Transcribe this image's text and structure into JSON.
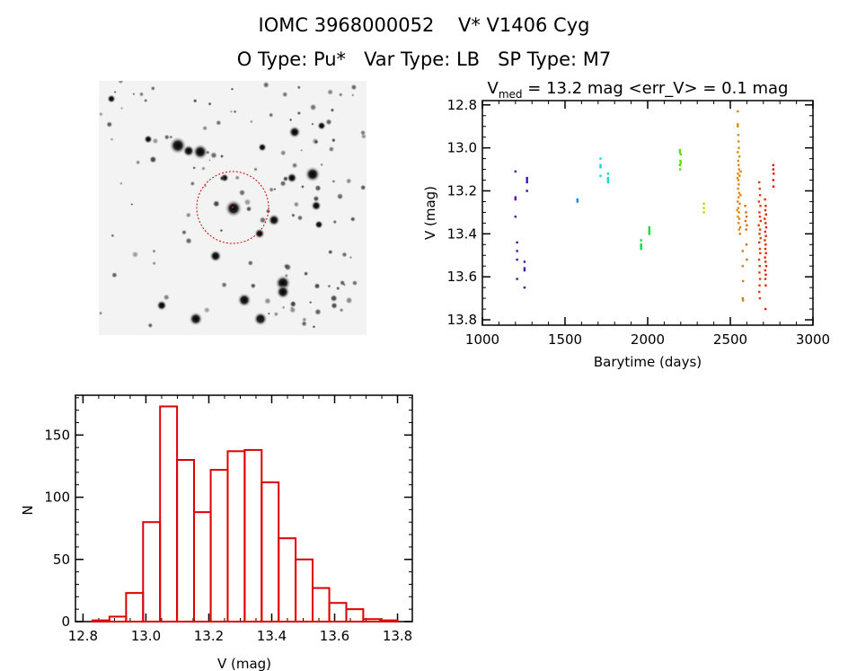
{
  "header": {
    "title_line1": "IOMC 3968000052    V* V1406 Cyg",
    "title_line2": "O Type: Pu*   Var Type: LB   SP Type: M7"
  },
  "chart_data": [
    {
      "type": "image",
      "description_label": "",
      "aperture_circle_color": "#cc0000"
    },
    {
      "type": "scatter",
      "title": "V_med = 13.2 mag <err_V> = 0.1 mag",
      "title_parts": {
        "v": "V",
        "sub": "med",
        "rest": " = 13.2 mag <err_V> = 0.1 mag"
      },
      "xlabel": "Barytime (days)",
      "ylabel": "V (mag)",
      "xlim": [
        1000,
        3000
      ],
      "ylim": [
        13.825,
        12.78
      ],
      "y_inverted": true,
      "xticks": [
        "1000",
        "1500",
        "2000",
        "2500",
        "3000"
      ],
      "yticks": [
        "12.8",
        "13.0",
        "13.2",
        "13.4",
        "13.6",
        "13.8"
      ],
      "color_scale": "rainbow by Barytime",
      "points": [
        [
          1200,
          13.11
        ],
        [
          1200,
          13.23
        ],
        [
          1200,
          13.24
        ],
        [
          1200,
          13.32
        ],
        [
          1210,
          13.44
        ],
        [
          1210,
          13.48
        ],
        [
          1210,
          13.52
        ],
        [
          1210,
          13.61
        ],
        [
          1255,
          13.53
        ],
        [
          1255,
          13.56
        ],
        [
          1255,
          13.57
        ],
        [
          1255,
          13.65
        ],
        [
          1270,
          13.14
        ],
        [
          1270,
          13.15
        ],
        [
          1270,
          13.16
        ],
        [
          1270,
          13.2
        ],
        [
          1575,
          13.24
        ],
        [
          1575,
          13.25
        ],
        [
          1715,
          13.05
        ],
        [
          1715,
          13.08
        ],
        [
          1715,
          13.09
        ],
        [
          1715,
          13.13
        ],
        [
          1760,
          13.12
        ],
        [
          1760,
          13.14
        ],
        [
          1760,
          13.15
        ],
        [
          1760,
          13.16
        ],
        [
          1960,
          13.43
        ],
        [
          1960,
          13.45
        ],
        [
          1960,
          13.46
        ],
        [
          1960,
          13.47
        ],
        [
          2010,
          13.37
        ],
        [
          2010,
          13.38
        ],
        [
          2010,
          13.39
        ],
        [
          2010,
          13.4
        ],
        [
          2195,
          13.01
        ],
        [
          2195,
          13.02
        ],
        [
          2200,
          13.03
        ],
        [
          2198,
          13.06
        ],
        [
          2200,
          13.07
        ],
        [
          2195,
          13.08
        ],
        [
          2197,
          13.1
        ],
        [
          2340,
          13.26
        ],
        [
          2340,
          13.28
        ],
        [
          2340,
          13.3
        ],
        [
          2545,
          12.83
        ],
        [
          2545,
          12.89
        ],
        [
          2545,
          12.9
        ],
        [
          2548,
          12.94
        ],
        [
          2550,
          12.97
        ],
        [
          2552,
          13.0
        ],
        [
          2545,
          13.02
        ],
        [
          2555,
          13.04
        ],
        [
          2548,
          13.06
        ],
        [
          2550,
          13.08
        ],
        [
          2553,
          13.1
        ],
        [
          2546,
          13.12
        ],
        [
          2556,
          13.13
        ],
        [
          2549,
          13.15
        ],
        [
          2551,
          13.17
        ],
        [
          2547,
          13.19
        ],
        [
          2554,
          13.21
        ],
        [
          2550,
          13.23
        ],
        [
          2545,
          13.25
        ],
        [
          2557,
          13.26
        ],
        [
          2548,
          13.28
        ],
        [
          2552,
          13.3
        ],
        [
          2546,
          13.32
        ],
        [
          2555,
          13.33
        ],
        [
          2550,
          13.35
        ],
        [
          2560,
          13.37
        ],
        [
          2553,
          13.38
        ],
        [
          2558,
          13.4
        ],
        [
          2543,
          13.14
        ],
        [
          2562,
          13.22
        ],
        [
          2541,
          13.29
        ],
        [
          2563,
          13.11
        ],
        [
          2575,
          13.48
        ],
        [
          2575,
          13.55
        ],
        [
          2577,
          13.62
        ],
        [
          2575,
          13.7
        ],
        [
          2577,
          13.71
        ],
        [
          2590,
          13.27
        ],
        [
          2595,
          13.3
        ],
        [
          2598,
          13.32
        ],
        [
          2592,
          13.34
        ],
        [
          2600,
          13.36
        ],
        [
          2596,
          13.38
        ],
        [
          2598,
          13.45
        ],
        [
          2600,
          13.52
        ],
        [
          2675,
          13.16
        ],
        [
          2678,
          13.19
        ],
        [
          2680,
          13.22
        ],
        [
          2673,
          13.25
        ],
        [
          2682,
          13.27
        ],
        [
          2676,
          13.3
        ],
        [
          2679,
          13.32
        ],
        [
          2684,
          13.34
        ],
        [
          2672,
          13.36
        ],
        [
          2680,
          13.38
        ],
        [
          2677,
          13.4
        ],
        [
          2683,
          13.42
        ],
        [
          2675,
          13.44
        ],
        [
          2679,
          13.47
        ],
        [
          2681,
          13.49
        ],
        [
          2674,
          13.52
        ],
        [
          2678,
          13.55
        ],
        [
          2676,
          13.58
        ],
        [
          2680,
          13.61
        ],
        [
          2677,
          13.64
        ],
        [
          2675,
          13.67
        ],
        [
          2679,
          13.7
        ],
        [
          2710,
          13.24
        ],
        [
          2714,
          13.27
        ],
        [
          2712,
          13.29
        ],
        [
          2716,
          13.31
        ],
        [
          2708,
          13.33
        ],
        [
          2713,
          13.35
        ],
        [
          2717,
          13.37
        ],
        [
          2711,
          13.39
        ],
        [
          2715,
          13.41
        ],
        [
          2709,
          13.43
        ],
        [
          2714,
          13.45
        ],
        [
          2712,
          13.47
        ],
        [
          2716,
          13.49
        ],
        [
          2710,
          13.51
        ],
        [
          2713,
          13.53
        ],
        [
          2717,
          13.55
        ],
        [
          2711,
          13.57
        ],
        [
          2715,
          13.59
        ],
        [
          2712,
          13.61
        ],
        [
          2714,
          13.64
        ],
        [
          2713,
          13.75
        ],
        [
          2760,
          13.08
        ],
        [
          2760,
          13.1
        ],
        [
          2762,
          13.12
        ],
        [
          2760,
          13.15
        ],
        [
          2761,
          13.18
        ]
      ]
    },
    {
      "type": "bar",
      "subtype": "histogram",
      "xlabel": "V (mag)",
      "ylabel": "N",
      "xlim": [
        12.776,
        13.847
      ],
      "ylim": [
        0,
        182
      ],
      "xticks": [
        "12.8",
        "13.0",
        "13.2",
        "13.4",
        "13.6",
        "13.8"
      ],
      "yticks": [
        "0",
        "50",
        "100",
        "150"
      ],
      "bin_edges": [
        12.83,
        12.884,
        12.937,
        12.991,
        13.045,
        13.099,
        13.153,
        13.206,
        13.26,
        13.314,
        13.368,
        13.422,
        13.476,
        13.53,
        13.583,
        13.637,
        13.691,
        13.745,
        13.8
      ],
      "values": [
        1,
        4,
        23,
        80,
        173,
        130,
        88,
        122,
        137,
        138,
        112,
        67,
        50,
        27,
        15,
        10,
        2,
        1
      ],
      "color": "#dd0000"
    }
  ]
}
